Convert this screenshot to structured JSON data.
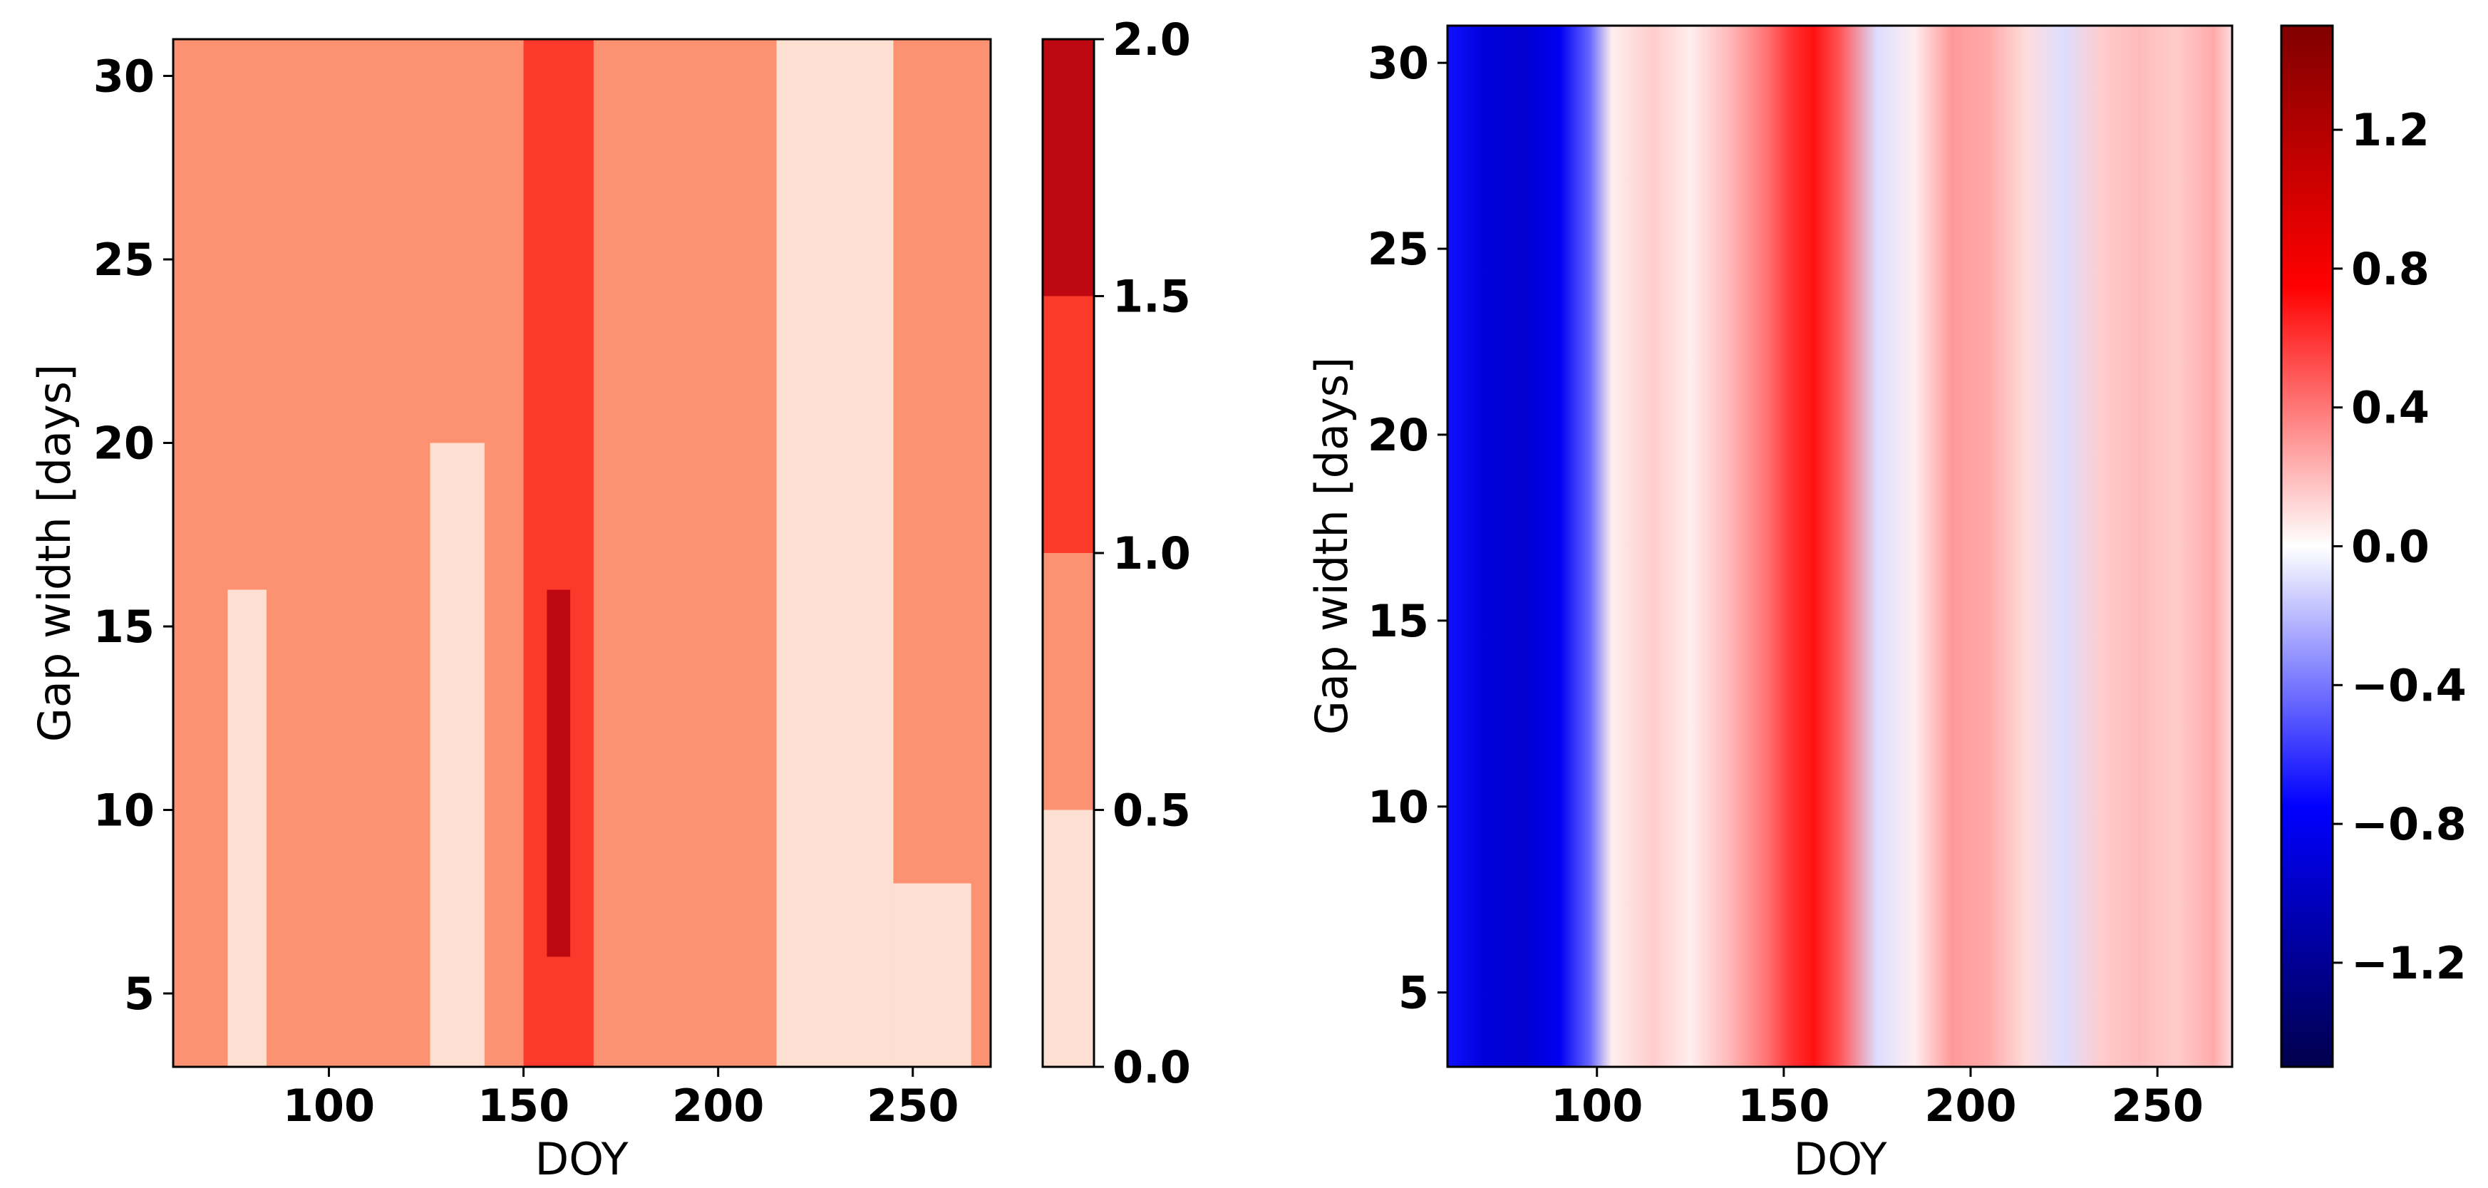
{
  "chart_data": [
    {
      "type": "heatmap",
      "panel": "left",
      "style": "filled-contour",
      "xlabel": "DOY",
      "ylabel": "Gap width [days]",
      "xlim": [
        60,
        270
      ],
      "ylim": [
        3,
        31
      ],
      "x_ticks": [
        "100",
        "150",
        "200",
        "250"
      ],
      "y_ticks": [
        "5",
        "10",
        "15",
        "20",
        "25",
        "30"
      ],
      "colormap": "Reds",
      "levels": [
        0.0,
        0.5,
        1.0,
        1.5,
        2.0
      ],
      "level_colors": [
        "#fde0d2",
        "#fc9272",
        "#fb3a2c",
        "#bd0812"
      ],
      "colorbar_ticks": [
        "0.0",
        "0.5",
        "1.0",
        "1.5",
        "2.0"
      ],
      "regions": [
        {
          "level_index": 1,
          "doy": [
            60,
            270
          ],
          "gap": [
            3,
            31
          ]
        },
        {
          "level_index": 0,
          "doy": [
            215,
            245
          ],
          "gap": [
            3,
            31
          ]
        },
        {
          "level_index": 0,
          "doy": [
            245,
            265
          ],
          "gap": [
            3,
            8
          ]
        },
        {
          "level_index": 0,
          "doy": [
            126,
            140
          ],
          "gap": [
            3,
            20
          ]
        },
        {
          "level_index": 0,
          "doy": [
            74,
            84
          ],
          "gap": [
            3,
            16
          ]
        },
        {
          "level_index": 2,
          "doy": [
            150,
            168
          ],
          "gap": [
            3,
            31
          ]
        },
        {
          "level_index": 3,
          "doy": [
            156,
            162
          ],
          "gap": [
            6,
            16
          ]
        }
      ]
    },
    {
      "type": "heatmap",
      "panel": "right",
      "style": "continuous",
      "xlabel": "DOY",
      "ylabel": "Gap width [days]",
      "xlim": [
        60,
        270
      ],
      "ylim": [
        3,
        31
      ],
      "x_ticks": [
        "100",
        "150",
        "200",
        "250"
      ],
      "y_ticks": [
        "5",
        "10",
        "15",
        "20",
        "25",
        "30"
      ],
      "colormap": "seismic",
      "vmin": -1.5,
      "vmax": 1.5,
      "colorbar_ticks": [
        "1.2",
        "0.8",
        "0.4",
        "0.0",
        "−0.4",
        "−0.8",
        "−1.2"
      ],
      "profile_doy": [
        60,
        70,
        80,
        90,
        98,
        104,
        115,
        125,
        135,
        145,
        152,
        158,
        165,
        175,
        185,
        195,
        205,
        215,
        225,
        235,
        245,
        255,
        265,
        270
      ],
      "profile_value": [
        -0.7,
        -0.9,
        -0.95,
        -0.8,
        -0.45,
        0.05,
        0.15,
        0.05,
        0.2,
        0.4,
        0.6,
        0.7,
        0.5,
        -0.1,
        0.05,
        0.3,
        0.25,
        0.1,
        -0.1,
        0.15,
        0.2,
        0.15,
        0.25,
        0.1
      ]
    }
  ]
}
